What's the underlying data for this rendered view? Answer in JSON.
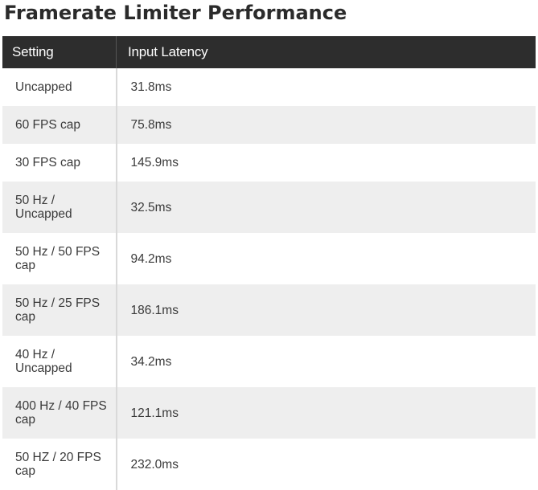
{
  "title": "Framerate Limiter Performance",
  "table": {
    "headers": [
      "Setting",
      "Input Latency"
    ],
    "rows": [
      {
        "setting": "Uncapped",
        "latency": "31.8ms"
      },
      {
        "setting": "60 FPS cap",
        "latency": "75.8ms"
      },
      {
        "setting": "30 FPS cap",
        "latency": "145.9ms"
      },
      {
        "setting": "50 Hz / Uncapped",
        "latency": "32.5ms"
      },
      {
        "setting": "50 Hz / 50 FPS cap",
        "latency": "94.2ms"
      },
      {
        "setting": "50 Hz / 25 FPS cap",
        "latency": "186.1ms"
      },
      {
        "setting": "40 Hz / Uncapped",
        "latency": "34.2ms"
      },
      {
        "setting": "400 Hz / 40 FPS cap",
        "latency": "121.1ms"
      },
      {
        "setting": "50 HZ / 20 FPS cap",
        "latency": "232.0ms"
      }
    ]
  },
  "colors": {
    "header_background": "#2d2d2d",
    "header_text": "#ffffff",
    "stripe_background": "#eeeeee"
  }
}
